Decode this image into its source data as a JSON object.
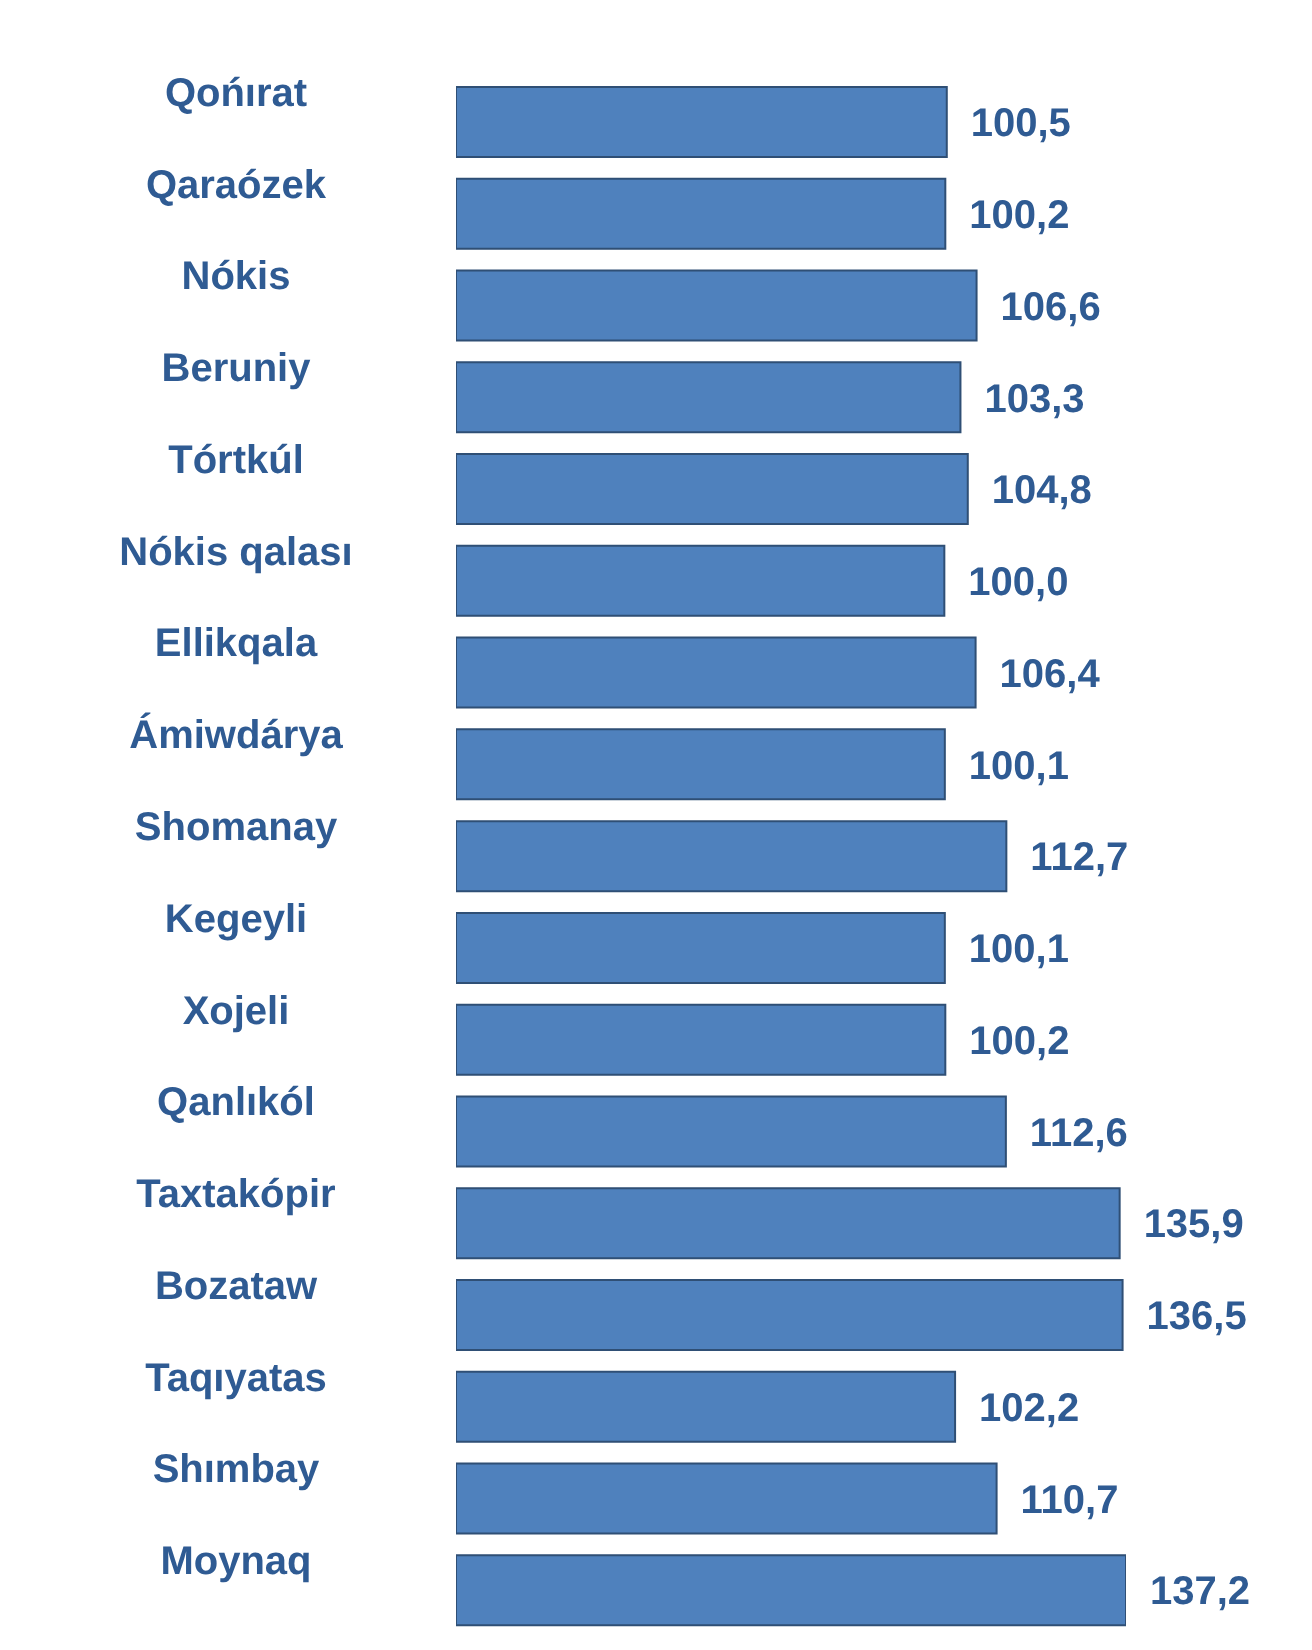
{
  "chart_data": {
    "type": "bar",
    "orientation": "horizontal",
    "categories": [
      "Qońırat",
      "Qaraózek",
      "Nókis",
      "Beruniy",
      "Tórtkúl",
      "Nókis qalası",
      "Ellikqala",
      "Ámiwdárya",
      "Shomanay",
      "Kegeyli",
      "Xojeli",
      "Qanlıkól",
      "Taxtakópir",
      "Bozataw",
      "Taqıyatas",
      "Shımbay",
      "Moynaq"
    ],
    "values": [
      100.5,
      100.2,
      106.6,
      103.3,
      104.8,
      100.0,
      106.4,
      100.1,
      112.7,
      100.1,
      100.2,
      112.6,
      135.9,
      136.5,
      102.2,
      110.7,
      137.2
    ],
    "value_labels": [
      "100,5",
      "100,2",
      "106,6",
      "103,3",
      "104,8",
      "100,0",
      "106,4",
      "100,1",
      "112,7",
      "100,1",
      "100,2",
      "112,6",
      "135,9",
      "136,5",
      "102,2",
      "110,7",
      "137,2"
    ],
    "color": "#4f81bd",
    "grid": false,
    "legend": false
  }
}
